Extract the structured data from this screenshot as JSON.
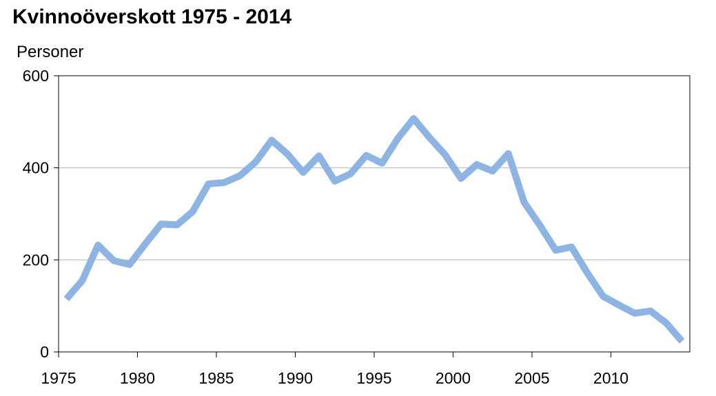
{
  "chart_data": {
    "type": "line",
    "title": "Kvinnoöverskott 1975 - 2014",
    "ylabel": "Personer",
    "xlabel": "",
    "xlim": [
      1975,
      2015
    ],
    "ylim": [
      0,
      600
    ],
    "xticks": [
      1975,
      1980,
      1985,
      1990,
      1995,
      2000,
      2005,
      2010
    ],
    "yticks": [
      0,
      200,
      400,
      600
    ],
    "grid": "horizontal",
    "line_color": "#8db4e2",
    "series": [
      {
        "x": [
          1975,
          1976,
          1977,
          1978,
          1979,
          1980,
          1981,
          1982,
          1983,
          1984,
          1985,
          1986,
          1987,
          1988,
          1989,
          1990,
          1991,
          1992,
          1993,
          1994,
          1995,
          1996,
          1997,
          1998,
          1999,
          2000,
          2001,
          2002,
          2003,
          2004,
          2005,
          2006,
          2007,
          2008,
          2009,
          2010,
          2011,
          2012,
          2013,
          2014
        ],
        "values": [
          115,
          155,
          232,
          198,
          190,
          235,
          278,
          276,
          305,
          365,
          368,
          383,
          413,
          460,
          430,
          390,
          426,
          371,
          387,
          427,
          410,
          464,
          507,
          466,
          428,
          377,
          407,
          393,
          431,
          325,
          275,
          221,
          228,
          172,
          121,
          102,
          84,
          89,
          63,
          23
        ]
      }
    ]
  }
}
